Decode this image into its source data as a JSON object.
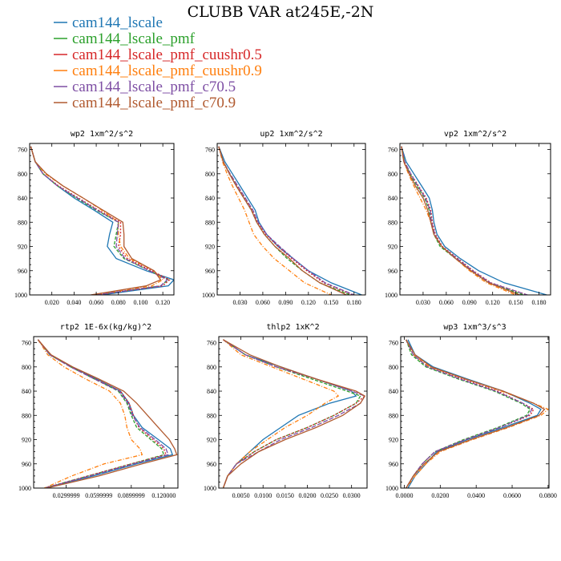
{
  "figure": {
    "title": "CLUBB VAR at245E,-2N",
    "colors": {
      "cam144_lscale": "#1f77b4",
      "cam144_lscale_pmf": "#2ca02c",
      "cam144_lscale_pmf_cuushr0.5": "#d62728",
      "cam144_lscale_pmf_cuushr0.9": "#ff7f0e",
      "cam144_lscale_pmf_c70.5": "#7e4fa4",
      "cam144_lscale_pmf_c70.9": "#b15a30"
    },
    "legend": [
      {
        "name": "cam144_lscale",
        "color": "#1f77b4",
        "dash": ""
      },
      {
        "name": "cam144_lscale_pmf",
        "color": "#2ca02c",
        "dash": "4,2"
      },
      {
        "name": "cam144_lscale_pmf_cuushr0.5",
        "color": "#d62728",
        "dash": "2,2"
      },
      {
        "name": "cam144_lscale_pmf_cuushr0.9",
        "color": "#ff7f0e",
        "dash": "5,2,1,2"
      },
      {
        "name": "cam144_lscale_pmf_c70.5",
        "color": "#7e4fa4",
        "dash": "6,2"
      },
      {
        "name": "cam144_lscale_pmf_c70.9",
        "color": "#b15a30",
        "dash": ""
      }
    ]
  },
  "chart_data": [
    {
      "type": "line",
      "title": "wp2   1xm^2/s^2",
      "ylim": [
        1000,
        750
      ],
      "yticks": [
        "760",
        "800",
        "840",
        "880",
        "920",
        "960",
        "1000"
      ],
      "xlim": [
        0.0,
        0.13
      ],
      "xticks": [
        "0.020",
        "0.040",
        "0.060",
        "0.080",
        "0.100",
        "0.120"
      ],
      "y": [
        755,
        780,
        800,
        820,
        840,
        860,
        880,
        900,
        920,
        940,
        960,
        975,
        985,
        1000
      ],
      "series": [
        {
          "name": "cam144_lscale",
          "x": [
            0.001,
            0.005,
            0.012,
            0.025,
            0.04,
            0.058,
            0.075,
            0.072,
            0.07,
            0.078,
            0.105,
            0.13,
            0.125,
            0.065
          ]
        },
        {
          "name": "cam144_lscale_pmf",
          "x": [
            0.001,
            0.005,
            0.012,
            0.025,
            0.042,
            0.06,
            0.08,
            0.078,
            0.076,
            0.085,
            0.108,
            0.125,
            0.118,
            0.06
          ]
        },
        {
          "name": "cam144_lscale_pmf_cuushr0.5",
          "x": [
            0.001,
            0.005,
            0.012,
            0.026,
            0.044,
            0.062,
            0.082,
            0.082,
            0.08,
            0.088,
            0.11,
            0.126,
            0.12,
            0.06
          ]
        },
        {
          "name": "cam144_lscale_pmf_cuushr0.9",
          "x": [
            0.001,
            0.005,
            0.014,
            0.03,
            0.048,
            0.065,
            0.08,
            0.08,
            0.082,
            0.09,
            0.112,
            0.12,
            0.11,
            0.058
          ]
        },
        {
          "name": "cam144_lscale_pmf_c70.5",
          "x": [
            0.001,
            0.005,
            0.012,
            0.025,
            0.043,
            0.061,
            0.08,
            0.079,
            0.078,
            0.086,
            0.108,
            0.124,
            0.118,
            0.06
          ]
        },
        {
          "name": "cam144_lscale_pmf_c70.9",
          "x": [
            0.001,
            0.005,
            0.015,
            0.03,
            0.048,
            0.066,
            0.084,
            0.085,
            0.085,
            0.092,
            0.112,
            0.118,
            0.105,
            0.055
          ]
        }
      ]
    },
    {
      "type": "line",
      "title": "up2   1xm^2/s^2",
      "ylim": [
        1000,
        750
      ],
      "yticks": [
        "760",
        "800",
        "840",
        "880",
        "920",
        "960",
        "1000"
      ],
      "xlim": [
        0.0,
        0.195
      ],
      "xticks": [
        "0.030",
        "0.060",
        "0.090",
        "0.120",
        "0.150",
        "0.180"
      ],
      "y": [
        755,
        780,
        800,
        820,
        840,
        860,
        880,
        900,
        920,
        940,
        960,
        980,
        1000
      ],
      "series": [
        {
          "name": "cam144_lscale",
          "x": [
            0.002,
            0.01,
            0.02,
            0.03,
            0.04,
            0.05,
            0.055,
            0.065,
            0.08,
            0.1,
            0.12,
            0.15,
            0.19
          ]
        },
        {
          "name": "cam144_lscale_pmf",
          "x": [
            0.002,
            0.008,
            0.016,
            0.025,
            0.035,
            0.045,
            0.052,
            0.062,
            0.076,
            0.092,
            0.112,
            0.135,
            0.175
          ]
        },
        {
          "name": "cam144_lscale_pmf_cuushr0.5",
          "x": [
            0.002,
            0.008,
            0.016,
            0.026,
            0.036,
            0.046,
            0.053,
            0.064,
            0.08,
            0.098,
            0.118,
            0.14,
            0.178
          ]
        },
        {
          "name": "cam144_lscale_pmf_cuushr0.9",
          "x": [
            0.002,
            0.007,
            0.013,
            0.02,
            0.028,
            0.036,
            0.042,
            0.048,
            0.06,
            0.075,
            0.095,
            0.115,
            0.15
          ]
        },
        {
          "name": "cam144_lscale_pmf_c70.5",
          "x": [
            0.002,
            0.008,
            0.017,
            0.027,
            0.037,
            0.047,
            0.054,
            0.065,
            0.082,
            0.1,
            0.12,
            0.142,
            0.18
          ]
        },
        {
          "name": "cam144_lscale_pmf_c70.9",
          "x": [
            0.002,
            0.008,
            0.016,
            0.025,
            0.035,
            0.045,
            0.052,
            0.062,
            0.076,
            0.095,
            0.112,
            0.135,
            0.17
          ]
        }
      ]
    },
    {
      "type": "line",
      "title": "vp2   1xm^2/s^2",
      "ylim": [
        1000,
        750
      ],
      "yticks": [
        "760",
        "800",
        "840",
        "880",
        "920",
        "960",
        "1000"
      ],
      "xlim": [
        0.0,
        0.195
      ],
      "xticks": [
        "0.030",
        "0.060",
        "0.090",
        "0.120",
        "0.150",
        "0.180"
      ],
      "y": [
        755,
        780,
        800,
        820,
        840,
        860,
        880,
        900,
        920,
        940,
        960,
        980,
        1000
      ],
      "series": [
        {
          "name": "cam144_lscale",
          "x": [
            0.002,
            0.008,
            0.018,
            0.028,
            0.038,
            0.042,
            0.044,
            0.048,
            0.058,
            0.078,
            0.102,
            0.135,
            0.19
          ]
        },
        {
          "name": "cam144_lscale_pmf",
          "x": [
            0.002,
            0.006,
            0.013,
            0.022,
            0.032,
            0.038,
            0.04,
            0.044,
            0.052,
            0.072,
            0.092,
            0.115,
            0.16
          ]
        },
        {
          "name": "cam144_lscale_pmf_cuushr0.5",
          "x": [
            0.002,
            0.006,
            0.014,
            0.024,
            0.034,
            0.04,
            0.042,
            0.046,
            0.055,
            0.075,
            0.095,
            0.118,
            0.165
          ]
        },
        {
          "name": "cam144_lscale_pmf_cuushr0.9",
          "x": [
            0.002,
            0.005,
            0.011,
            0.018,
            0.026,
            0.034,
            0.04,
            0.044,
            0.054,
            0.072,
            0.09,
            0.112,
            0.15
          ]
        },
        {
          "name": "cam144_lscale_pmf_c70.5",
          "x": [
            0.002,
            0.006,
            0.014,
            0.023,
            0.033,
            0.039,
            0.041,
            0.045,
            0.054,
            0.074,
            0.094,
            0.117,
            0.165
          ]
        },
        {
          "name": "cam144_lscale_pmf_c70.9",
          "x": [
            0.002,
            0.005,
            0.012,
            0.02,
            0.03,
            0.036,
            0.04,
            0.044,
            0.054,
            0.072,
            0.092,
            0.115,
            0.155
          ]
        }
      ]
    },
    {
      "type": "line",
      "title": "rtp2   1E-6x(kg/kg)^2",
      "ylim": [
        1000,
        750
      ],
      "yticks": [
        "760",
        "800",
        "840",
        "880",
        "920",
        "960",
        "1000"
      ],
      "xlim": [
        0.0,
        0.133
      ],
      "xticks": [
        "0.0299999",
        "0.0599999",
        "0.0899999",
        "0.120000"
      ],
      "y": [
        755,
        780,
        800,
        820,
        840,
        860,
        880,
        900,
        920,
        935,
        945,
        960,
        980,
        1000
      ],
      "series": [
        {
          "name": "cam144_lscale",
          "x": [
            0.004,
            0.015,
            0.035,
            0.058,
            0.08,
            0.088,
            0.092,
            0.1,
            0.115,
            0.126,
            0.128,
            0.095,
            0.055,
            0.01
          ]
        },
        {
          "name": "cam144_lscale_pmf",
          "x": [
            0.004,
            0.015,
            0.034,
            0.056,
            0.078,
            0.086,
            0.09,
            0.095,
            0.108,
            0.118,
            0.12,
            0.09,
            0.05,
            0.01
          ]
        },
        {
          "name": "cam144_lscale_pmf_cuushr0.5",
          "x": [
            0.004,
            0.015,
            0.034,
            0.057,
            0.08,
            0.088,
            0.092,
            0.097,
            0.11,
            0.12,
            0.122,
            0.09,
            0.05,
            0.01
          ]
        },
        {
          "name": "cam144_lscale_pmf_cuushr0.9",
          "x": [
            0.004,
            0.013,
            0.028,
            0.048,
            0.07,
            0.08,
            0.084,
            0.086,
            0.09,
            0.098,
            0.1,
            0.065,
            0.035,
            0.01
          ]
        },
        {
          "name": "cam144_lscale_pmf_c70.5",
          "x": [
            0.004,
            0.015,
            0.034,
            0.056,
            0.079,
            0.087,
            0.091,
            0.098,
            0.112,
            0.122,
            0.124,
            0.092,
            0.052,
            0.01
          ]
        },
        {
          "name": "cam144_lscale_pmf_c70.9",
          "x": [
            0.004,
            0.016,
            0.036,
            0.06,
            0.083,
            0.095,
            0.105,
            0.115,
            0.125,
            0.13,
            0.132,
            0.1,
            0.06,
            0.012
          ]
        }
      ]
    },
    {
      "type": "line",
      "title": "thlp2   1xK^2",
      "ylim": [
        1000,
        750
      ],
      "yticks": [
        "760",
        "800",
        "840",
        "880",
        "920",
        "960",
        "1000"
      ],
      "xlim": [
        0.0,
        0.0335
      ],
      "xticks": [
        "0.0050",
        "0.0100",
        "0.0150",
        "0.0200",
        "0.0250",
        "0.0300"
      ],
      "y": [
        755,
        780,
        800,
        820,
        840,
        848,
        860,
        880,
        900,
        920,
        940,
        960,
        980,
        1000
      ],
      "series": [
        {
          "name": "cam144_lscale",
          "x": [
            0.001,
            0.006,
            0.014,
            0.022,
            0.03,
            0.031,
            0.025,
            0.018,
            0.014,
            0.01,
            0.007,
            0.004,
            0.002,
            0.001
          ]
        },
        {
          "name": "cam144_lscale_pmf",
          "x": [
            0.001,
            0.006,
            0.013,
            0.021,
            0.029,
            0.032,
            0.031,
            0.026,
            0.02,
            0.013,
            0.008,
            0.004,
            0.002,
            0.001
          ]
        },
        {
          "name": "cam144_lscale_pmf_cuushr0.5",
          "x": [
            0.001,
            0.006,
            0.013,
            0.022,
            0.03,
            0.033,
            0.031,
            0.026,
            0.02,
            0.013,
            0.008,
            0.004,
            0.002,
            0.001
          ]
        },
        {
          "name": "cam144_lscale_pmf_cuushr0.9",
          "x": [
            0.001,
            0.005,
            0.012,
            0.019,
            0.026,
            0.027,
            0.024,
            0.02,
            0.015,
            0.011,
            0.007,
            0.004,
            0.002,
            0.001
          ]
        },
        {
          "name": "cam144_lscale_pmf_c70.5",
          "x": [
            0.001,
            0.006,
            0.013,
            0.022,
            0.03,
            0.033,
            0.032,
            0.027,
            0.021,
            0.014,
            0.009,
            0.004,
            0.002,
            0.001
          ]
        },
        {
          "name": "cam144_lscale_pmf_c70.9",
          "x": [
            0.001,
            0.007,
            0.014,
            0.022,
            0.031,
            0.033,
            0.032,
            0.028,
            0.022,
            0.015,
            0.009,
            0.005,
            0.002,
            0.001
          ]
        }
      ]
    },
    {
      "type": "line",
      "title": "wp3   1xm^3/s^3",
      "ylim": [
        1000,
        750
      ],
      "yticks": [
        "760",
        "800",
        "840",
        "880",
        "920",
        "960",
        "1000"
      ],
      "xlim": [
        -0.002,
        0.0805
      ],
      "xticks": [
        "0.0000",
        "0.0200",
        "0.0400",
        "0.0600",
        "0.0800"
      ],
      "y": [
        755,
        780,
        800,
        820,
        840,
        860,
        870,
        880,
        900,
        920,
        940,
        960,
        980,
        1000
      ],
      "series": [
        {
          "name": "cam144_lscale",
          "x": [
            0.002,
            0.006,
            0.016,
            0.035,
            0.055,
            0.07,
            0.076,
            0.074,
            0.055,
            0.035,
            0.018,
            0.012,
            0.006,
            0.002
          ]
        },
        {
          "name": "cam144_lscale_pmf",
          "x": [
            0.001,
            0.004,
            0.012,
            0.03,
            0.05,
            0.065,
            0.07,
            0.068,
            0.052,
            0.033,
            0.017,
            0.01,
            0.005,
            0.001
          ]
        },
        {
          "name": "cam144_lscale_pmf_cuushr0.5",
          "x": [
            0.001,
            0.005,
            0.013,
            0.032,
            0.052,
            0.066,
            0.072,
            0.07,
            0.053,
            0.034,
            0.017,
            0.01,
            0.005,
            0.001
          ]
        },
        {
          "name": "cam144_lscale_pmf_cuushr0.9",
          "x": [
            0.001,
            0.005,
            0.014,
            0.034,
            0.054,
            0.072,
            0.08,
            0.076,
            0.058,
            0.038,
            0.02,
            0.012,
            0.006,
            0.001
          ]
        },
        {
          "name": "cam144_lscale_pmf_c70.5",
          "x": [
            0.001,
            0.005,
            0.013,
            0.031,
            0.051,
            0.066,
            0.071,
            0.069,
            0.053,
            0.034,
            0.017,
            0.01,
            0.005,
            0.001
          ]
        },
        {
          "name": "cam144_lscale_pmf_c70.9",
          "x": [
            0.001,
            0.006,
            0.015,
            0.034,
            0.055,
            0.072,
            0.078,
            0.075,
            0.057,
            0.037,
            0.019,
            0.011,
            0.005,
            0.001
          ]
        }
      ]
    }
  ]
}
